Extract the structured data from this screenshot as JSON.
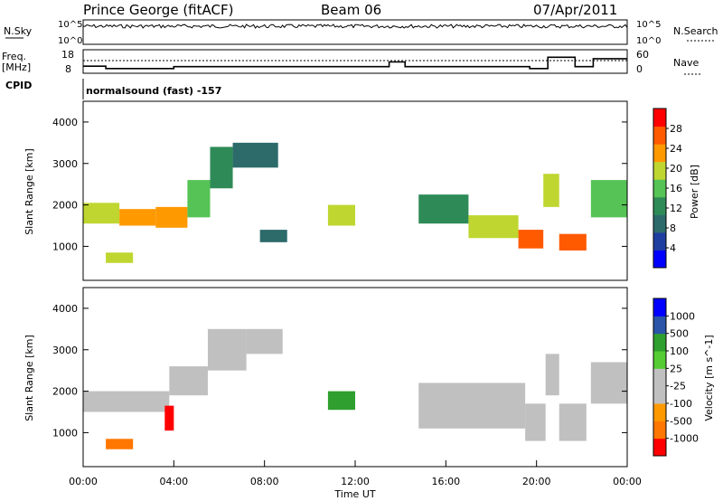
{
  "header": {
    "site": "Prince George (fitACF)",
    "beam": "Beam 06",
    "date": "07/Apr/2011"
  },
  "side_labels": {
    "nsky": "N.Sky",
    "nsearch": "N.Search",
    "freq_line1": "Freq.",
    "freq_line2": "[MHz]",
    "nave": "Nave",
    "cpid": "CPID",
    "cpid_value": "normalsound (fast) -157"
  },
  "colors": {
    "power_scale": [
      "#0000ff",
      "#1f3fa0",
      "#2d6b6b",
      "#2e8b57",
      "#55c355",
      "#bfd630",
      "#ff9900",
      "#ff5a00",
      "#ff0000"
    ],
    "velocity_scale": [
      "#ff0000",
      "#ff7700",
      "#ff9900",
      "#c0c0c0",
      "#c0c0c0",
      "#55cc33",
      "#2f9f2f",
      "#2a55a8",
      "#0000ff"
    ],
    "ground_scatter": "#c0c0c0"
  },
  "chart_data": [
    {
      "type": "line",
      "name": "noise-panel",
      "ylabel_left": "N.Sky",
      "ylabel_right": "N.Search",
      "ytick_labels_left": [
        "10^5",
        "10^0"
      ],
      "ytick_labels_right": [
        "10^5",
        "10^0"
      ],
      "x_range_hours": [
        0,
        24
      ]
    },
    {
      "type": "line",
      "name": "freq-nave-panel",
      "ylabel_left": "Freq. [MHz]",
      "ylabel_right": "Nave",
      "ytick_labels_left": [
        "18",
        "8"
      ],
      "ytick_labels_right": [
        "60",
        "0"
      ],
      "freq_steps": [
        {
          "t0": 0,
          "t1": 1.0,
          "mhz": 11.0
        },
        {
          "t0": 1.0,
          "t1": 4.0,
          "mhz": 10.0
        },
        {
          "t0": 4.0,
          "t1": 13.5,
          "mhz": 10.8
        },
        {
          "t0": 13.5,
          "t1": 14.2,
          "mhz": 12.8
        },
        {
          "t0": 14.2,
          "t1": 19.7,
          "mhz": 10.8
        },
        {
          "t0": 19.7,
          "t1": 20.5,
          "mhz": 10.0
        },
        {
          "t0": 20.5,
          "t1": 21.7,
          "mhz": 14.8
        },
        {
          "t0": 21.7,
          "t1": 22.5,
          "mhz": 10.8
        },
        {
          "t0": 22.5,
          "t1": 24.0,
          "mhz": 14.2
        }
      ],
      "x_range_hours": [
        0,
        24
      ]
    },
    {
      "type": "heatmap",
      "name": "power-rti",
      "ylabel": "Slant Range [km]",
      "yticks": [
        1000,
        2000,
        3000,
        4000
      ],
      "ylim": [
        180,
        4500
      ],
      "xlim_hours": [
        0,
        24
      ],
      "colorbar_label": "Power [dB]",
      "colorbar_ticks": [
        "4",
        "8",
        "12",
        "16",
        "20",
        "24",
        "28"
      ],
      "scatter_regions": [
        {
          "t0": 0.0,
          "t1": 1.6,
          "r0": 1550,
          "r1": 2050,
          "db": 18
        },
        {
          "t0": 1.6,
          "t1": 3.2,
          "r0": 1500,
          "r1": 1900,
          "db": 22
        },
        {
          "t0": 3.2,
          "t1": 4.6,
          "r0": 1450,
          "r1": 1950,
          "db": 24
        },
        {
          "t0": 4.6,
          "t1": 5.6,
          "r0": 1700,
          "r1": 2600,
          "db": 14
        },
        {
          "t0": 5.6,
          "t1": 6.6,
          "r0": 2400,
          "r1": 3400,
          "db": 12
        },
        {
          "t0": 6.6,
          "t1": 8.6,
          "r0": 2900,
          "r1": 3500,
          "db": 6
        },
        {
          "t0": 1.0,
          "t1": 2.2,
          "r0": 600,
          "r1": 850,
          "db": 20
        },
        {
          "t0": 7.8,
          "t1": 9.0,
          "r0": 1100,
          "r1": 1400,
          "db": 6
        },
        {
          "t0": 10.8,
          "t1": 12.0,
          "r0": 1500,
          "r1": 2000,
          "db": 20
        },
        {
          "t0": 14.8,
          "t1": 17.0,
          "r0": 1550,
          "r1": 2250,
          "db": 10
        },
        {
          "t0": 17.0,
          "t1": 19.2,
          "r0": 1200,
          "r1": 1750,
          "db": 20
        },
        {
          "t0": 19.2,
          "t1": 20.3,
          "r0": 950,
          "r1": 1400,
          "db": 28
        },
        {
          "t0": 20.3,
          "t1": 21.0,
          "r0": 1950,
          "r1": 2750,
          "db": 18
        },
        {
          "t0": 21.0,
          "t1": 22.2,
          "r0": 900,
          "r1": 1300,
          "db": 28
        },
        {
          "t0": 22.4,
          "t1": 24.0,
          "r0": 1700,
          "r1": 2600,
          "db": 16
        }
      ]
    },
    {
      "type": "heatmap",
      "name": "velocity-rti",
      "ylabel": "Slant Range [km]",
      "yticks": [
        1000,
        2000,
        3000,
        4000
      ],
      "ylim": [
        180,
        4500
      ],
      "xlim_hours": [
        0,
        24
      ],
      "xticks": [
        "00:00",
        "04:00",
        "08:00",
        "12:00",
        "16:00",
        "20:00",
        "00:00"
      ],
      "xlabel": "Time UT",
      "colorbar_label": "Velocity [m s^-1]",
      "colorbar_ticks": [
        "1000",
        "500",
        "100",
        "25",
        "-25",
        "-100",
        "-500",
        "-1000"
      ],
      "scatter_regions": [
        {
          "t0": 0.0,
          "t1": 3.8,
          "r0": 1500,
          "r1": 2000,
          "v": 0
        },
        {
          "t0": 3.8,
          "t1": 5.5,
          "r0": 1900,
          "r1": 2600,
          "v": 0
        },
        {
          "t0": 5.5,
          "t1": 7.2,
          "r0": 2500,
          "r1": 3500,
          "v": 0
        },
        {
          "t0": 7.2,
          "t1": 8.8,
          "r0": 2900,
          "r1": 3500,
          "v": 0
        },
        {
          "t0": 3.6,
          "t1": 4.0,
          "r0": 1050,
          "r1": 1650,
          "v": -600
        },
        {
          "t0": 1.0,
          "t1": 2.2,
          "r0": 600,
          "r1": 850,
          "v": -300
        },
        {
          "t0": 10.8,
          "t1": 12.0,
          "r0": 1550,
          "r1": 2000,
          "v": 150
        },
        {
          "t0": 14.8,
          "t1": 19.5,
          "r0": 1100,
          "r1": 2200,
          "v": 0
        },
        {
          "t0": 19.5,
          "t1": 20.4,
          "r0": 800,
          "r1": 1700,
          "v": 0
        },
        {
          "t0": 20.4,
          "t1": 21.0,
          "r0": 1900,
          "r1": 2900,
          "v": 0
        },
        {
          "t0": 21.0,
          "t1": 22.2,
          "r0": 800,
          "r1": 1700,
          "v": 0
        },
        {
          "t0": 22.4,
          "t1": 24.0,
          "r0": 1700,
          "r1": 2700,
          "v": 0
        }
      ]
    }
  ]
}
